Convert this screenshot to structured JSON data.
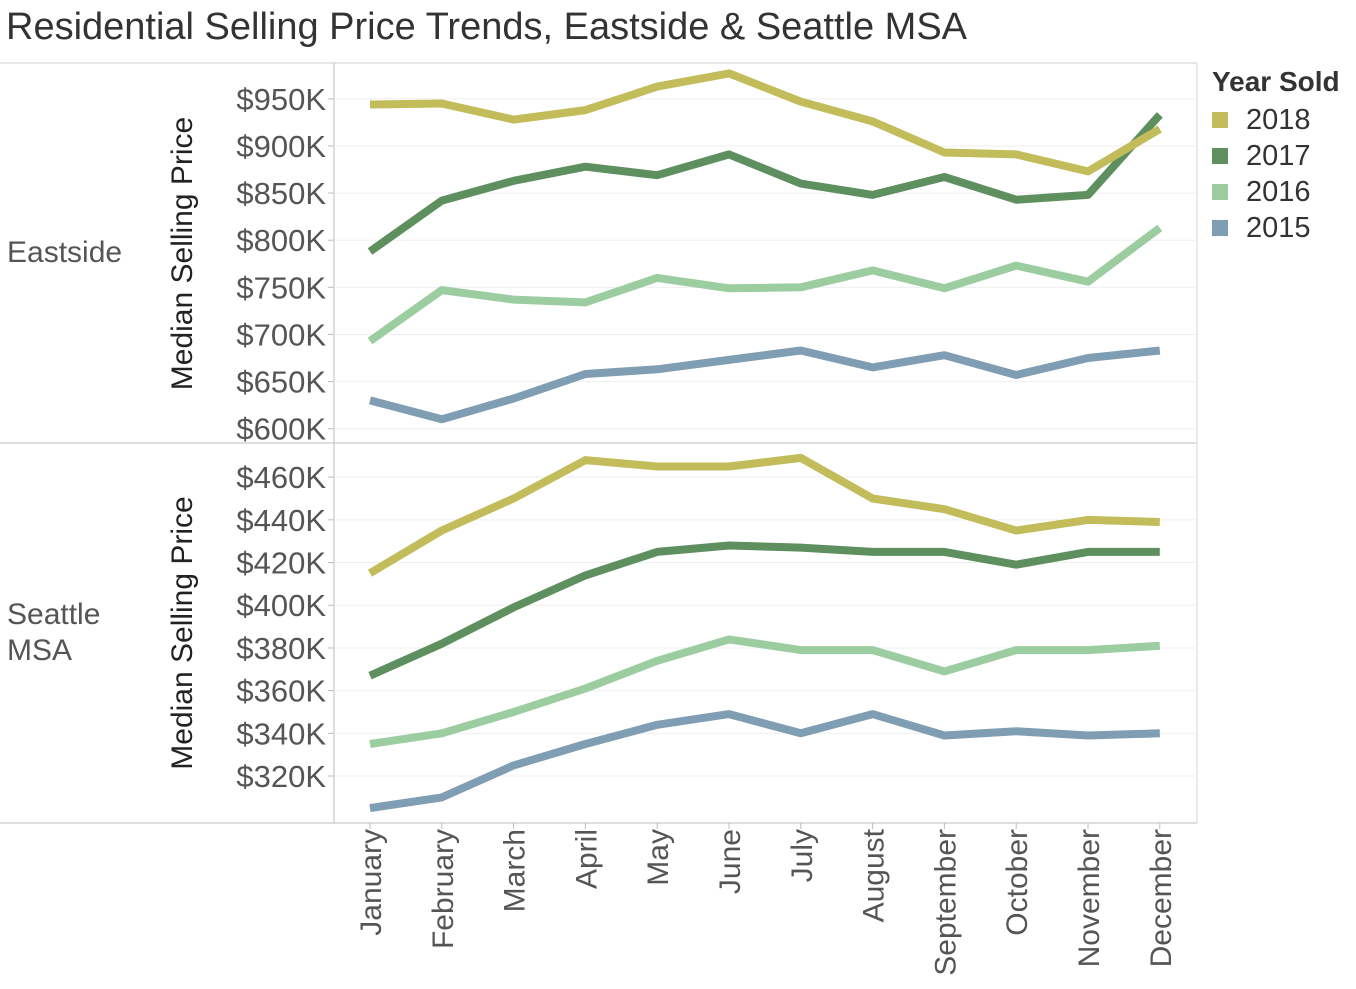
{
  "title": "Residential Selling Price Trends, Eastside & Seattle MSA",
  "legend": {
    "title": "Year Sold",
    "items": [
      {
        "label": "2018",
        "color": "#c2bc5a"
      },
      {
        "label": "2017",
        "color": "#5e8f5f"
      },
      {
        "label": "2016",
        "color": "#9ccda1"
      },
      {
        "label": "2015",
        "color": "#7f9db3"
      }
    ]
  },
  "chart_data": [
    {
      "type": "line",
      "panel_label": "Eastside",
      "ylabel": "Median Selling Price",
      "ylim": [
        588000,
        988000
      ],
      "yticks": [
        600000,
        650000,
        700000,
        750000,
        800000,
        850000,
        900000,
        950000
      ],
      "ytick_labels": [
        "$600K",
        "$650K",
        "$700K",
        "$750K",
        "$800K",
        "$850K",
        "$900K",
        "$950K"
      ],
      "categories": [
        "January",
        "February",
        "March",
        "April",
        "May",
        "June",
        "July",
        "August",
        "September",
        "October",
        "November",
        "December"
      ],
      "series": [
        {
          "name": "2018",
          "color": "#c2bc5a",
          "values": [
            944000,
            945000,
            928000,
            938000,
            963000,
            977000,
            947000,
            926000,
            893000,
            891000,
            873000,
            918000
          ]
        },
        {
          "name": "2017",
          "color": "#5e8f5f",
          "values": [
            788000,
            842000,
            863000,
            878000,
            869000,
            891000,
            860000,
            848000,
            867000,
            843000,
            848000,
            933000
          ]
        },
        {
          "name": "2016",
          "color": "#9ccda1",
          "values": [
            693000,
            747000,
            737000,
            734000,
            760000,
            749000,
            750000,
            768000,
            749000,
            773000,
            756000,
            813000
          ]
        },
        {
          "name": "2015",
          "color": "#7f9db3",
          "values": [
            630000,
            610000,
            632000,
            658000,
            663000,
            673000,
            683000,
            665000,
            678000,
            657000,
            675000,
            683000
          ]
        }
      ]
    },
    {
      "type": "line",
      "panel_label": "Seattle MSA",
      "ylabel": "Median Selling Price",
      "ylim": [
        298000,
        476000
      ],
      "yticks": [
        320000,
        340000,
        360000,
        380000,
        400000,
        420000,
        440000,
        460000
      ],
      "ytick_labels": [
        "$320K",
        "$340K",
        "$360K",
        "$380K",
        "$400K",
        "$420K",
        "$440K",
        "$460K"
      ],
      "categories": [
        "January",
        "February",
        "March",
        "April",
        "May",
        "June",
        "July",
        "August",
        "September",
        "October",
        "November",
        "December"
      ],
      "series": [
        {
          "name": "2018",
          "color": "#c2bc5a",
          "values": [
            415000,
            435000,
            450000,
            468000,
            465000,
            465000,
            469000,
            450000,
            445000,
            435000,
            440000,
            439000
          ]
        },
        {
          "name": "2017",
          "color": "#5e8f5f",
          "values": [
            367000,
            382000,
            399000,
            414000,
            425000,
            428000,
            427000,
            425000,
            425000,
            419000,
            425000,
            425000
          ]
        },
        {
          "name": "2016",
          "color": "#9ccda1",
          "values": [
            335000,
            340000,
            350000,
            361000,
            374000,
            384000,
            379000,
            379000,
            369000,
            379000,
            379000,
            381000
          ]
        },
        {
          "name": "2015",
          "color": "#7f9db3",
          "values": [
            305000,
            310000,
            325000,
            335000,
            344000,
            349000,
            340000,
            349000,
            339000,
            341000,
            339000,
            340000
          ]
        }
      ]
    }
  ]
}
